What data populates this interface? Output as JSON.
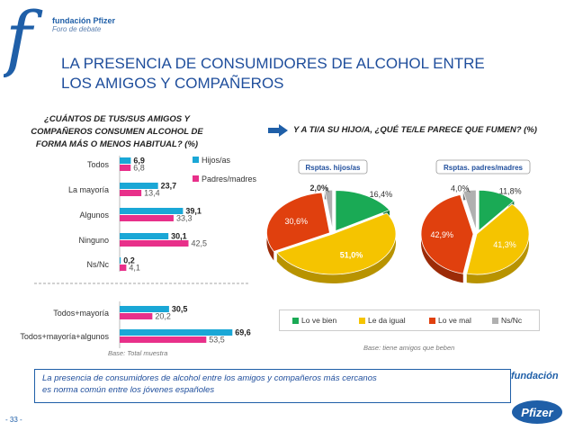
{
  "logo": {
    "name": "fundación Pfizer",
    "subtitle": "Foro de debate"
  },
  "title": {
    "line1": "LA PRESENCIA DE CONSUMIDORES DE ALCOHOL ENTRE",
    "line2": "LOS AMIGOS Y COMPAÑEROS"
  },
  "question1": {
    "line1": "¿CUÁNTOS DE TUS/SUS AMIGOS Y",
    "line2": "COMPAÑEROS CONSUMEN ALCOHOL DE",
    "line3": "FORMA MÁS O MENOS HABITUAL? (%)"
  },
  "question2": "Y A TI/A SU HIJO/A, ¿QUÉ TE/LE PARECE QUE FUMEN? (%)",
  "base1": "Base: Total muestra",
  "base2": "Base: tiene amigos que beben",
  "conclusion": {
    "line1": "La presencia de consumidores de alcohol entre los amigos y compañeros más cercanos",
    "line2": "es norma común entre los jóvenes españoles"
  },
  "footer": {
    "fundacion": "fundación",
    "pfizer": "Pfizer",
    "page": "- 33 -"
  },
  "colors": {
    "blue": "#1aa7d6",
    "magenta": "#e8308a",
    "green": "#1aaa55",
    "yellow": "#f5c400",
    "red": "#e0400e",
    "gray": "#b0b0b0"
  },
  "chart_data": [
    {
      "type": "bar",
      "orientation": "horizontal",
      "categories": [
        "Todos",
        "La mayoría",
        "Algunos",
        "Ninguno",
        "Ns/Nc",
        "Todos+mayoría",
        "Todos+mayoría+algunos"
      ],
      "series": [
        {
          "name": "Hijos/as",
          "values": [
            6.9,
            23.7,
            39.1,
            30.1,
            0.2,
            30.5,
            69.6
          ],
          "labels": [
            "6,9",
            "23,7",
            "39,1",
            "30,1",
            "0,2",
            "30,5",
            "69,6"
          ]
        },
        {
          "name": "Padres/madres",
          "values": [
            6.8,
            13.4,
            33.3,
            42.5,
            4.1,
            20.2,
            53.5
          ],
          "labels": [
            "6,8",
            "13,4",
            "33,3",
            "42,5",
            "4,1",
            "20,2",
            "53,5"
          ]
        }
      ],
      "xlim": [
        0,
        100
      ]
    },
    {
      "type": "pie",
      "title": "Rsptas. hijos/as",
      "categories": [
        "Lo ve bien",
        "Le da igual",
        "Lo ve mal",
        "Ns/Nc"
      ],
      "values": [
        16.4,
        51.0,
        30.6,
        2.0
      ],
      "labels": [
        "16,4%",
        "51,0%",
        "30,6%",
        "2,0%"
      ]
    },
    {
      "type": "pie",
      "title": "Rsptas. padres/madres",
      "categories": [
        "Lo ve bien",
        "Le da igual",
        "Lo ve mal",
        "Ns/Nc"
      ],
      "values": [
        11.8,
        41.3,
        42.9,
        4.0
      ],
      "labels": [
        "11,8%",
        "41,3%",
        "42,9%",
        "4,0%"
      ]
    }
  ]
}
